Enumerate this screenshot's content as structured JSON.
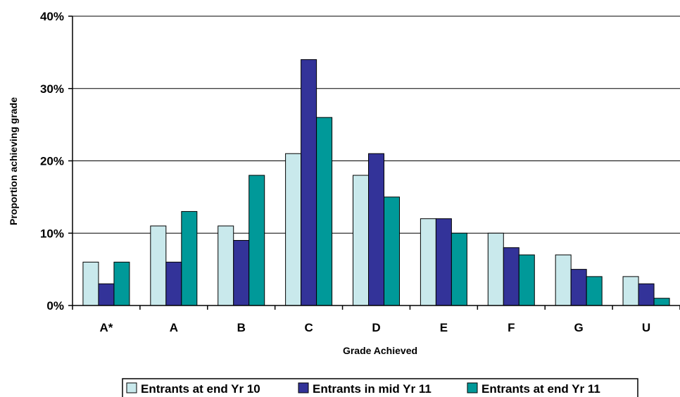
{
  "chart_data": {
    "type": "bar",
    "title": "",
    "xlabel": "Grade Achieved",
    "ylabel": "Proportion achieving grade",
    "categories": [
      "A*",
      "A",
      "B",
      "C",
      "D",
      "E",
      "F",
      "G",
      "U"
    ],
    "ylim": [
      0,
      40
    ],
    "yticks": [
      0,
      10,
      20,
      30,
      40
    ],
    "ytick_labels": [
      "0%",
      "10%",
      "20%",
      "30%",
      "40%"
    ],
    "grid": true,
    "legend_position": "bottom",
    "series": [
      {
        "name": "Entrants at end Yr 10",
        "color": "#C9E9EC",
        "values": [
          6,
          11,
          11,
          21,
          18,
          12,
          10,
          7,
          4
        ]
      },
      {
        "name": "Entrants in mid Yr 11",
        "color": "#333399",
        "values": [
          3,
          6,
          9,
          34,
          21,
          12,
          8,
          5,
          3
        ]
      },
      {
        "name": "Entrants at end Yr 11",
        "color": "#009999",
        "values": [
          6,
          13,
          18,
          26,
          15,
          10,
          7,
          4,
          1
        ]
      }
    ]
  }
}
